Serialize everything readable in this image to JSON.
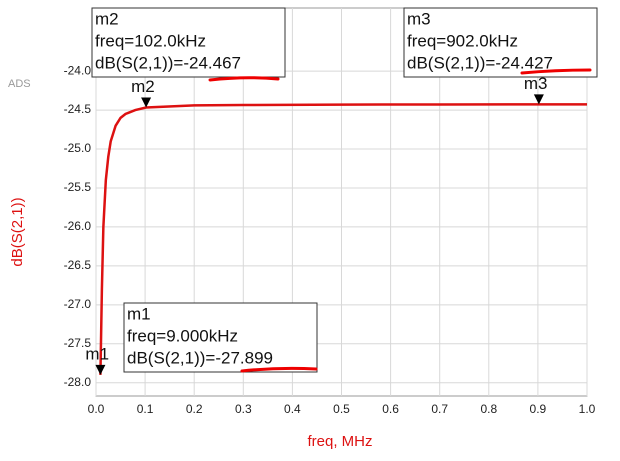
{
  "chart_data": {
    "type": "line",
    "watermark": "ADS",
    "x_label": "freq, MHz",
    "y_label": "dB(S(2,1))",
    "xlim": [
      0,
      1
    ],
    "ylim": [
      -28.17,
      -23.19
    ],
    "xticks": [
      {
        "value": 0,
        "label": "0.0"
      },
      0.1,
      0.2,
      0.3,
      0.4,
      0.5,
      0.6,
      0.7,
      0.8,
      0.9,
      {
        "value": 1,
        "label": "1.0"
      }
    ],
    "yticks": [
      {
        "value": -28,
        "label": "-28.0"
      },
      -27.5,
      {
        "value": -27,
        "label": "-27.0"
      },
      -26.5,
      {
        "value": -26,
        "label": "-26.0"
      },
      -25.5,
      {
        "value": -25,
        "label": "-25.0"
      },
      -24.5,
      {
        "value": -24,
        "label": "-24.0"
      }
    ],
    "grid": true,
    "series": [
      {
        "name": "dB(S(2,1))",
        "color": "#dd1111",
        "x": [
          0.009,
          0.012,
          0.015,
          0.02,
          0.025,
          0.03,
          0.04,
          0.05,
          0.06,
          0.08,
          0.102,
          0.2,
          0.3,
          0.5,
          0.7,
          0.902,
          1.0
        ],
        "values": [
          -27.899,
          -26.8,
          -26.0,
          -25.4,
          -25.1,
          -24.9,
          -24.7,
          -24.6,
          -24.55,
          -24.5,
          -24.467,
          -24.44,
          -24.435,
          -24.43,
          -24.428,
          -24.427,
          -24.427
        ]
      }
    ],
    "markers": [
      {
        "name": "m1",
        "x": 0.009,
        "y": -27.899,
        "lines": [
          "freq=9.000kHz",
          "dB(S(2,1))=-27.899"
        ]
      },
      {
        "name": "m2",
        "x": 0.102,
        "y": -24.467,
        "lines": [
          "freq=102.0kHz",
          "dB(S(2,1))=-24.467"
        ]
      },
      {
        "name": "m3",
        "x": 0.902,
        "y": -24.427,
        "lines": [
          "freq=902.0kHz",
          "dB(S(2,1))=-24.427"
        ]
      }
    ]
  }
}
